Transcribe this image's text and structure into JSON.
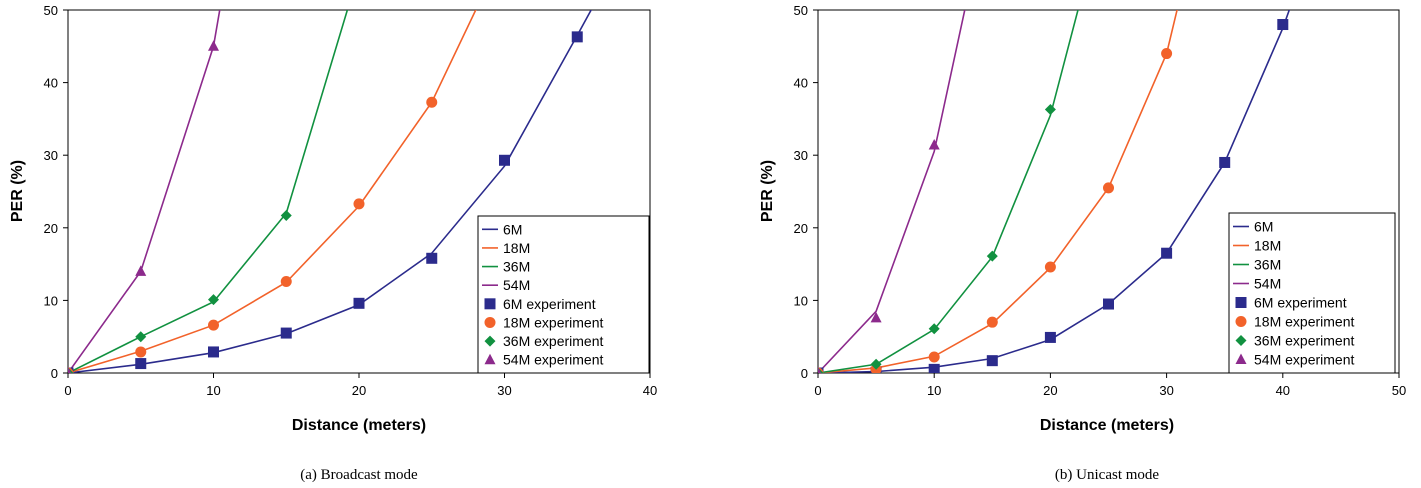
{
  "colors": {
    "6M": "#2b2b8c",
    "18M": "#f2622a",
    "36M": "#119140",
    "54M": "#8c2a8c"
  },
  "chart_data": [
    {
      "type": "line",
      "caption": "(a)  Broadcast mode",
      "xlabel": "Distance (meters)",
      "ylabel": "PER (%)",
      "xlim": [
        0,
        40
      ],
      "ylim": [
        0,
        50
      ],
      "xticks": [
        0,
        10,
        20,
        30,
        40
      ],
      "yticks": [
        0,
        10,
        20,
        30,
        40,
        50
      ],
      "grid": false,
      "legend_position": "bottom-right",
      "lines": [
        {
          "name": "6M",
          "color_key": "6M",
          "x": [
            0,
            5,
            10,
            15,
            20,
            25,
            30,
            35,
            36.5
          ],
          "y": [
            0,
            1.2,
            2.8,
            5.4,
            9.4,
            16.5,
            28.5,
            46.5,
            52
          ]
        },
        {
          "name": "18M",
          "color_key": "18M",
          "x": [
            0,
            5,
            10,
            15,
            20,
            25,
            28.5
          ],
          "y": [
            0,
            3,
            6.6,
            12.5,
            23,
            37.3,
            52
          ]
        },
        {
          "name": "36M",
          "color_key": "36M",
          "x": [
            0,
            5,
            10,
            15,
            19.5
          ],
          "y": [
            0,
            5,
            9.8,
            22,
            52
          ]
        },
        {
          "name": "54M",
          "color_key": "54M",
          "x": [
            0,
            5,
            10,
            10.6
          ],
          "y": [
            0,
            14,
            45,
            52
          ]
        }
      ],
      "experiments": [
        {
          "name": "6M experiment",
          "color_key": "6M",
          "marker": "square",
          "x": [
            0,
            5,
            10,
            15,
            20,
            25,
            30,
            35
          ],
          "y": [
            0,
            1.3,
            2.9,
            5.5,
            9.6,
            15.8,
            29.3,
            46.3
          ]
        },
        {
          "name": "18M experiment",
          "color_key": "18M",
          "marker": "circle",
          "x": [
            0,
            5,
            10,
            15,
            20,
            25
          ],
          "y": [
            0,
            2.9,
            6.6,
            12.6,
            23.3,
            37.3
          ]
        },
        {
          "name": "36M experiment",
          "color_key": "36M",
          "marker": "diamond",
          "x": [
            0,
            5,
            10,
            15
          ],
          "y": [
            0,
            5,
            10.1,
            21.7
          ]
        },
        {
          "name": "54M experiment",
          "color_key": "54M",
          "marker": "triangle",
          "x": [
            0,
            5,
            10
          ],
          "y": [
            0,
            14,
            45
          ]
        }
      ],
      "legend": [
        "6M",
        "18M",
        "36M",
        "54M",
        "6M experiment",
        "18M experiment",
        "36M experiment",
        "54M experiment"
      ]
    },
    {
      "type": "line",
      "caption": "(b)  Unicast mode",
      "xlabel": "Distance (meters)",
      "ylabel": "PER (%)",
      "xlim": [
        0,
        50
      ],
      "ylim": [
        0,
        50
      ],
      "xticks": [
        0,
        10,
        20,
        30,
        40,
        50
      ],
      "yticks": [
        0,
        10,
        20,
        30,
        40,
        50
      ],
      "grid": false,
      "legend_position": "bottom-right",
      "lines": [
        {
          "name": "6M",
          "color_key": "6M",
          "x": [
            0,
            5,
            10,
            15,
            20,
            25,
            30,
            35,
            40,
            41
          ],
          "y": [
            0,
            0.2,
            0.8,
            2,
            4.6,
            9.5,
            16.5,
            29,
            47.5,
            52
          ]
        },
        {
          "name": "18M",
          "color_key": "18M",
          "x": [
            0,
            5,
            10,
            15,
            20,
            25,
            30,
            31.2
          ],
          "y": [
            0,
            0.7,
            2.3,
            6.8,
            14.5,
            25.5,
            44,
            52
          ]
        },
        {
          "name": "36M",
          "color_key": "36M",
          "x": [
            0,
            5,
            10,
            15,
            20,
            22.7
          ],
          "y": [
            0,
            1.2,
            6,
            16,
            35.5,
            52
          ]
        },
        {
          "name": "54M",
          "color_key": "54M",
          "x": [
            0,
            5,
            10,
            12.9
          ],
          "y": [
            0,
            8.5,
            30.5,
            52
          ]
        }
      ],
      "experiments": [
        {
          "name": "6M experiment",
          "color_key": "6M",
          "marker": "square",
          "x": [
            0,
            5,
            10,
            15,
            20,
            25,
            30,
            35,
            40
          ],
          "y": [
            0,
            0.1,
            0.5,
            1.7,
            4.9,
            9.5,
            16.5,
            29,
            48
          ]
        },
        {
          "name": "18M experiment",
          "color_key": "18M",
          "marker": "circle",
          "x": [
            0,
            5,
            10,
            15,
            20,
            25,
            30
          ],
          "y": [
            0,
            0.5,
            2.2,
            7,
            14.6,
            25.5,
            44
          ]
        },
        {
          "name": "36M experiment",
          "color_key": "36M",
          "marker": "diamond",
          "x": [
            0,
            5,
            10,
            15,
            20
          ],
          "y": [
            0,
            1.2,
            6.1,
            16.1,
            36.3
          ]
        },
        {
          "name": "54M experiment",
          "color_key": "54M",
          "marker": "triangle",
          "x": [
            0,
            5,
            10
          ],
          "y": [
            0,
            7.6,
            31.4
          ]
        }
      ],
      "legend": [
        "6M",
        "18M",
        "36M",
        "54M",
        "6M experiment",
        "18M experiment",
        "36M experiment",
        "54M experiment"
      ]
    }
  ]
}
